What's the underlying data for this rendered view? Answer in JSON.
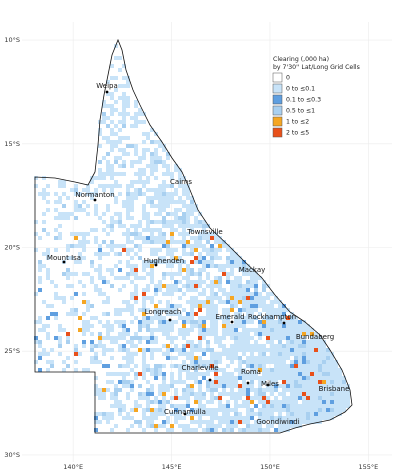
{
  "map": {
    "legend": {
      "title": [
        "Clearing (,000 ha)",
        "by 7'30'' Lat/Long Grid Cells"
      ],
      "items": [
        {
          "label": "0",
          "color": "#ffffff"
        },
        {
          "label": "0 to ≤0.1",
          "color": "#c8e3f8"
        },
        {
          "label": "0.1 to ≤0.3",
          "color": "#5f9fe0"
        },
        {
          "label": "0.5 to ≤1",
          "color": "#a9d0f0"
        },
        {
          "label": "1 to ≤2",
          "color": "#f5a623"
        },
        {
          "label": "2 to ≤5",
          "color": "#e8501a"
        }
      ]
    },
    "xlim": [
      137.4,
      156.2
    ],
    "ylim": [
      -30.34,
      -9.13
    ],
    "xticks": [
      {
        "value": 140,
        "label": "140°E"
      },
      {
        "value": 145,
        "label": "145°E"
      },
      {
        "value": 150,
        "label": "150°E"
      },
      {
        "value": 155,
        "label": "155°E"
      }
    ],
    "yticks": [
      {
        "value": -10,
        "label": "10°S"
      },
      {
        "value": -15,
        "label": "15°S"
      },
      {
        "value": -20,
        "label": "20°S"
      },
      {
        "value": -25,
        "label": "25°S"
      },
      {
        "value": -30,
        "label": "30°S"
      }
    ],
    "cities": [
      "Weipa",
      "Normanton",
      "Cairns",
      "Townsville",
      "Mount Isa",
      "Hughenden",
      "Mackay",
      "Longreach",
      "Emerald",
      "Rockhampton",
      "Bundaberg",
      "Charleville",
      "Roma",
      "Miles",
      "Brisbane",
      "Cunnamulla",
      "Goondiwindi"
    ]
  }
}
